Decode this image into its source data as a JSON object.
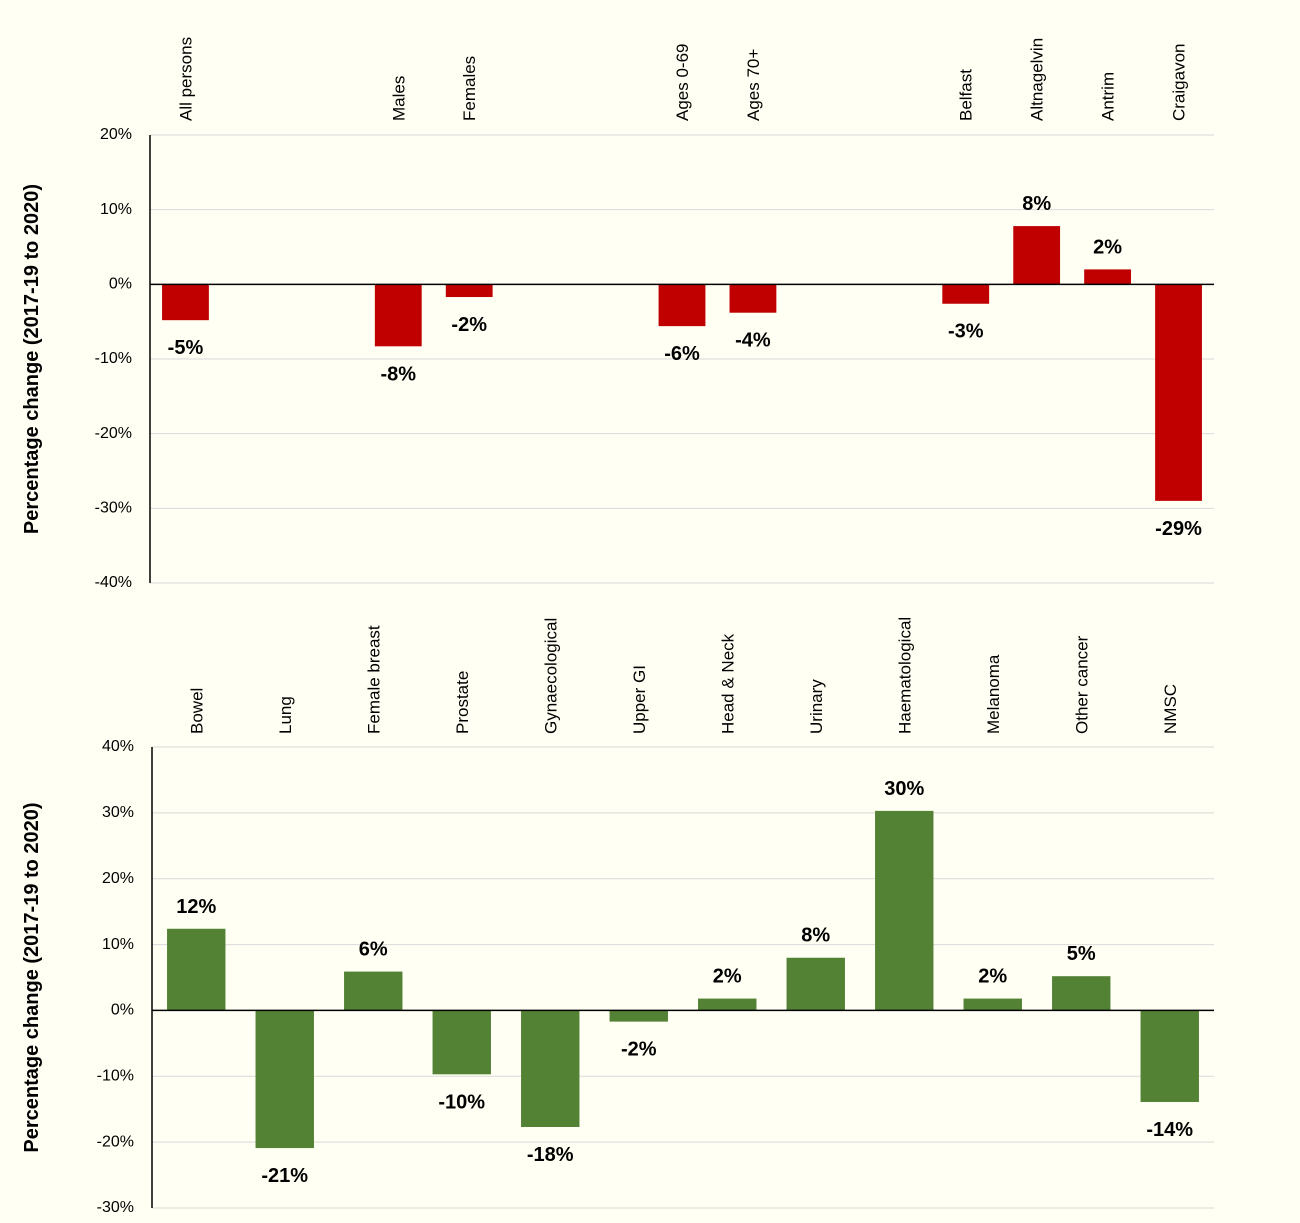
{
  "chart_data": [
    {
      "type": "bar",
      "y_label": "Percentage change (2017-19 to 2020)",
      "color": "#c00000",
      "categories": [
        "All persons",
        null,
        null,
        "Males",
        "Females",
        null,
        null,
        "Ages 0-69",
        "Ages 70+",
        null,
        null,
        "Belfast",
        "Altnagelvin",
        "Antrim",
        "Craigavon"
      ],
      "values": [
        -4.8,
        null,
        null,
        -8.3,
        -1.7,
        null,
        null,
        -5.6,
        -3.8,
        null,
        null,
        -2.6,
        7.8,
        2.0,
        -29.0
      ],
      "value_labels": [
        "-5%",
        null,
        null,
        "-8%",
        "-2%",
        null,
        null,
        "-6%",
        "-4%",
        null,
        null,
        "-3%",
        "8%",
        "2%",
        "-29%"
      ],
      "ylim": [
        -40,
        20
      ],
      "yticks": [
        {
          "value": -40,
          "label": "-40%"
        },
        {
          "value": -30,
          "label": "-30%"
        },
        {
          "value": -20,
          "label": "-20%"
        },
        {
          "value": -10,
          "label": "-10%"
        },
        {
          "value": 0,
          "label": "0%"
        },
        {
          "value": 10,
          "label": "10%"
        },
        {
          "value": 20,
          "label": "20%"
        }
      ],
      "grid": true
    },
    {
      "type": "bar",
      "y_label": "Percentage change (2017-19 to 2020)",
      "color": "#548235",
      "categories": [
        "Bowel",
        "Lung",
        "Female breast",
        "Prostate",
        "Gynaecological",
        "Upper GI",
        "Head & Neck",
        "Urinary",
        "Haematological",
        "Melanoma",
        "Other cancer",
        "NMSC"
      ],
      "values": [
        12.4,
        -20.9,
        5.9,
        -9.7,
        -17.7,
        -1.7,
        1.8,
        8.0,
        30.3,
        1.8,
        5.2,
        -13.9
      ],
      "value_labels": [
        "12%",
        "-21%",
        "6%",
        "-10%",
        "-18%",
        "-2%",
        "2%",
        "8%",
        "30%",
        "2%",
        "5%",
        "-14%"
      ],
      "ylim": [
        -30,
        40
      ],
      "yticks": [
        {
          "value": -30,
          "label": "-30%"
        },
        {
          "value": -20,
          "label": "-20%"
        },
        {
          "value": -10,
          "label": "-10%"
        },
        {
          "value": 0,
          "label": "0%"
        },
        {
          "value": 10,
          "label": "10%"
        },
        {
          "value": 20,
          "label": "20%"
        },
        {
          "value": 30,
          "label": "30%"
        },
        {
          "value": 40,
          "label": "40%"
        }
      ],
      "grid": true
    }
  ]
}
